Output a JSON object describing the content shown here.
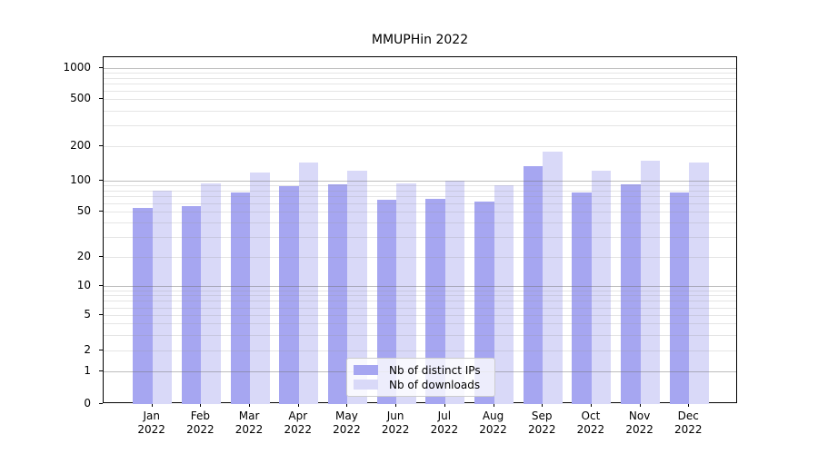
{
  "title": "MMUPHin 2022",
  "chart_data": {
    "type": "bar",
    "title": "MMUPHin 2022",
    "yscale": "symlog",
    "ylim": [
      0,
      1300
    ],
    "grid": true,
    "legend_position": "lower center",
    "categories": [
      "Jan",
      "Feb",
      "Mar",
      "Apr",
      "May",
      "Jun",
      "Jul",
      "Aug",
      "Sep",
      "Oct",
      "Nov",
      "Dec"
    ],
    "x_tick_year": "2022",
    "y_ticks": [
      0,
      1,
      2,
      5,
      10,
      20,
      50,
      100,
      200,
      500,
      1000
    ],
    "series": [
      {
        "name": "Nb of distinct IPs",
        "color": "#a6a6f1",
        "values": [
          54,
          56,
          77,
          88,
          92,
          65,
          67,
          63,
          134,
          77,
          93,
          77
        ]
      },
      {
        "name": "Nb of downloads",
        "color": "#d9d9f8",
        "values": [
          80,
          95,
          118,
          145,
          122,
          95,
          100,
          90,
          180,
          122,
          150,
          145
        ]
      }
    ]
  }
}
